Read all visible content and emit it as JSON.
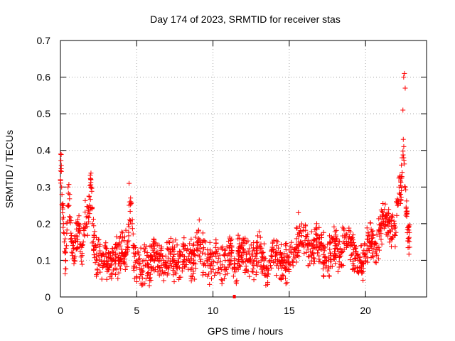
{
  "chart_data": {
    "type": "scatter",
    "title": "Day 174 of 2023, SRMTID for receiver stas",
    "xlabel": "GPS time / hours",
    "ylabel": "SRMTID / TECUs",
    "xlim": [
      0,
      24
    ],
    "ylim": [
      0,
      0.7
    ],
    "x_ticks": [
      0,
      5,
      10,
      15,
      20
    ],
    "y_ticks": [
      0,
      0.1,
      0.2,
      0.3,
      0.4,
      0.5,
      0.6,
      0.7
    ],
    "x_tick_labels": [
      "0",
      "5",
      "10",
      "15",
      "20"
    ],
    "y_tick_labels": [
      "0",
      "0.1",
      "0.2",
      "0.3",
      "0.4",
      "0.5",
      "0.6",
      "0.7"
    ],
    "grid": true,
    "marker": "+",
    "color": "#ff0000",
    "series": [
      {
        "name": "SRMTID",
        "x": [
          0.0,
          0.05,
          0.1,
          0.15,
          0.2,
          0.25,
          0.3,
          0.35,
          0.4,
          0.5,
          0.6,
          0.7,
          0.8,
          0.9,
          1.0,
          1.2,
          1.4,
          1.6,
          1.8,
          1.9,
          2.0,
          2.1,
          2.2,
          2.4,
          2.6,
          2.8,
          3.0,
          3.2,
          3.4,
          3.6,
          3.8,
          4.0,
          4.2,
          4.4,
          4.6,
          4.7,
          4.8,
          5.0,
          5.2,
          5.4,
          5.6,
          5.8,
          6.0,
          6.3,
          6.6,
          6.9,
          7.2,
          7.5,
          7.8,
          8.1,
          8.4,
          8.7,
          9.0,
          9.3,
          9.6,
          9.9,
          10.2,
          10.5,
          10.8,
          11.1,
          11.4,
          11.7,
          12.0,
          12.3,
          12.6,
          12.9,
          13.2,
          13.5,
          13.8,
          14.1,
          14.4,
          14.7,
          15.0,
          15.3,
          15.6,
          15.9,
          16.2,
          16.5,
          16.8,
          17.1,
          17.4,
          17.7,
          18.0,
          18.3,
          18.6,
          18.9,
          19.2,
          19.5,
          19.8,
          20.1,
          20.4,
          20.7,
          21.0,
          21.3,
          21.6,
          21.9,
          22.1,
          22.2,
          22.3,
          22.4,
          22.5,
          22.6,
          22.7,
          22.8,
          0.02,
          0.08,
          0.12,
          0.6,
          1.5,
          2.0,
          4.5,
          4.6,
          22.45,
          22.5,
          22.55,
          22.6,
          22.35,
          22.25,
          9.1,
          15.6,
          16.8,
          18.5
        ],
        "y": [
          0.32,
          0.35,
          0.28,
          0.24,
          0.2,
          0.15,
          0.12,
          0.1,
          0.14,
          0.3,
          0.22,
          0.16,
          0.12,
          0.1,
          0.15,
          0.18,
          0.14,
          0.2,
          0.22,
          0.25,
          0.3,
          0.2,
          0.14,
          0.1,
          0.12,
          0.09,
          0.11,
          0.08,
          0.1,
          0.12,
          0.09,
          0.13,
          0.11,
          0.15,
          0.27,
          0.2,
          0.12,
          0.08,
          0.09,
          0.07,
          0.1,
          0.08,
          0.11,
          0.12,
          0.1,
          0.09,
          0.12,
          0.1,
          0.08,
          0.13,
          0.11,
          0.09,
          0.14,
          0.12,
          0.1,
          0.09,
          0.11,
          0.08,
          0.1,
          0.12,
          0.09,
          0.11,
          0.13,
          0.1,
          0.09,
          0.12,
          0.11,
          0.08,
          0.1,
          0.12,
          0.09,
          0.08,
          0.11,
          0.13,
          0.15,
          0.18,
          0.14,
          0.12,
          0.16,
          0.13,
          0.1,
          0.12,
          0.14,
          0.11,
          0.13,
          0.15,
          0.12,
          0.1,
          0.09,
          0.14,
          0.16,
          0.13,
          0.19,
          0.22,
          0.2,
          0.17,
          0.25,
          0.3,
          0.28,
          0.34,
          0.38,
          0.3,
          0.22,
          0.16,
          0.39,
          0.3,
          0.25,
          0.28,
          0.15,
          0.32,
          0.31,
          0.26,
          0.51,
          0.6,
          0.61,
          0.57,
          0.36,
          0.33,
          0.21,
          0.23,
          0.2,
          0.19
        ]
      }
    ],
    "outlier_marker": {
      "x": 11.4,
      "y": 0.0
    }
  }
}
